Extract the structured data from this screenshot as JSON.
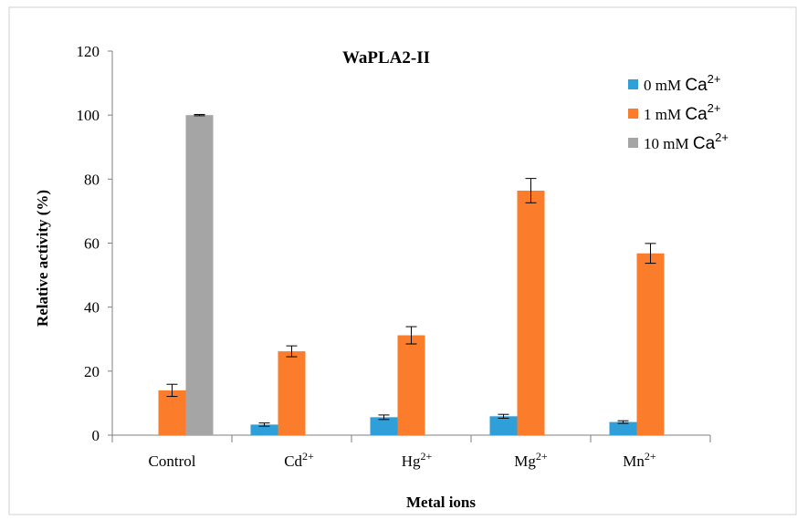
{
  "chart_data": {
    "type": "bar",
    "title": "WaPLA2-II",
    "xlabel": "Metal ions",
    "ylabel": "Relative activity (%)",
    "ylim": [
      0,
      120
    ],
    "yticks": [
      0,
      20,
      40,
      60,
      80,
      100,
      120
    ],
    "grid": false,
    "legend_position": "top-right",
    "categories": [
      {
        "base": "Control",
        "sup": ""
      },
      {
        "base": "Cd",
        "sup": "2+"
      },
      {
        "base": "Hg",
        "sup": "2+"
      },
      {
        "base": "Mg",
        "sup": "2+"
      },
      {
        "base": "Mn",
        "sup": "2+"
      }
    ],
    "series": [
      {
        "name": "0 mM",
        "ion": "Ca",
        "ion_sup": "2+",
        "color": "#2E9FD8",
        "values": [
          null,
          3.3,
          5.6,
          5.9,
          4.1
        ],
        "errors": [
          null,
          0.5,
          0.7,
          0.6,
          0.4
        ]
      },
      {
        "name": "1 mM",
        "ion": "Ca",
        "ion_sup": "2+",
        "color": "#FB7C2A",
        "values": [
          14.0,
          26.2,
          31.2,
          76.4,
          56.8
        ],
        "errors": [
          1.9,
          1.7,
          2.7,
          3.8,
          3.1
        ]
      },
      {
        "name": "10 mM",
        "ion": "Ca",
        "ion_sup": "2+",
        "color": "#A5A5A5",
        "values": [
          100,
          null,
          null,
          null,
          null
        ],
        "errors": [
          0.2,
          null,
          null,
          null,
          null
        ]
      }
    ]
  }
}
